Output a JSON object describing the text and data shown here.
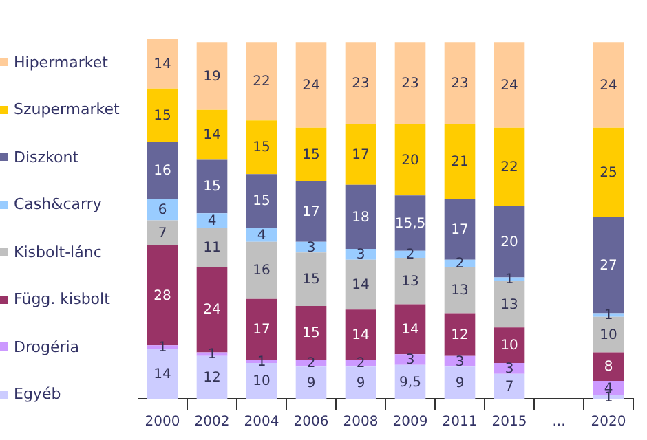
{
  "chart_data": {
    "type": "bar",
    "stacked": true,
    "legend": "left",
    "categories": [
      "2000",
      "2002",
      "2004",
      "2006",
      "2008",
      "2009",
      "2011",
      "2015",
      "...",
      "2020"
    ],
    "series": [
      {
        "name": "Egyéb",
        "color": "#ccccff",
        "values": [
          14,
          12,
          10,
          9,
          9,
          9.5,
          9,
          7,
          null,
          1
        ],
        "value_labels": [
          "14",
          "12",
          "10",
          "9",
          "9",
          "9,5",
          "9",
          "7",
          null,
          "1"
        ]
      },
      {
        "name": "Drogéria",
        "color": "#cc99ff",
        "values": [
          1,
          1,
          1,
          2,
          2,
          3,
          3,
          3,
          null,
          4
        ],
        "value_labels": [
          "1",
          "1",
          "1",
          "2",
          "2",
          "3",
          "3",
          "3",
          null,
          "4"
        ]
      },
      {
        "name": "Függ. kisbolt",
        "color": "#993366",
        "values": [
          28,
          24,
          17,
          15,
          14,
          14,
          12,
          10,
          null,
          8
        ],
        "value_labels": [
          "28",
          "24",
          "17",
          "15",
          "14",
          "14",
          "12",
          "10",
          null,
          "8"
        ]
      },
      {
        "name": "Kisbolt-lánc",
        "color": "#c0c0c0",
        "values": [
          7,
          11,
          16,
          15,
          14,
          13,
          13,
          13,
          null,
          10
        ],
        "value_labels": [
          "7",
          "11",
          "16",
          "15",
          "14",
          "13",
          "13",
          "13",
          null,
          "10"
        ]
      },
      {
        "name": "Cash&carry",
        "color": "#99ccff",
        "values": [
          6,
          4,
          4,
          3,
          3,
          2,
          2,
          1,
          null,
          1
        ],
        "value_labels": [
          "6",
          "4",
          "4",
          "3",
          "3",
          "2",
          "2",
          "1",
          null,
          "1"
        ]
      },
      {
        "name": "Diszkont",
        "color": "#666699",
        "values": [
          16,
          15,
          15,
          17,
          18,
          15.5,
          17,
          20,
          null,
          27
        ],
        "value_labels": [
          "16",
          "15",
          "15",
          "17",
          "18",
          "15,5",
          "17",
          "20",
          null,
          "27"
        ]
      },
      {
        "name": "Szupermarket",
        "color": "#ffcc00",
        "values": [
          15,
          14,
          15,
          15,
          17,
          20,
          21,
          22,
          null,
          25
        ],
        "value_labels": [
          "15",
          "14",
          "15",
          "15",
          "17",
          "20",
          "21",
          "22",
          null,
          "25"
        ]
      },
      {
        "name": "Hipermarket",
        "color": "#ffcc99",
        "values": [
          14,
          19,
          22,
          24,
          23,
          23,
          23,
          24,
          null,
          24
        ],
        "value_labels": [
          "14",
          "19",
          "22",
          "24",
          "23",
          "23",
          "23",
          "24",
          null,
          "24"
        ]
      }
    ]
  }
}
